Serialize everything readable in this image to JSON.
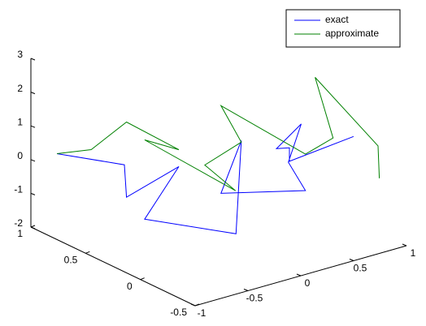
{
  "chart_data": {
    "type": "line3d",
    "xlim": [
      -1,
      1
    ],
    "ylim": [
      -0.5,
      1
    ],
    "zlim": [
      -2,
      3
    ],
    "xticks": [
      -1,
      -0.5,
      0,
      0.5,
      1
    ],
    "yticks": [
      -0.5,
      0,
      0.5,
      1
    ],
    "zticks": [
      -2,
      -1,
      0,
      1,
      2,
      3
    ],
    "legend_position": "top-right",
    "series": [
      {
        "name": "exact",
        "color": "#0000ff",
        "x": [
          -0.96,
          -0.53,
          -0.51,
          -0.17,
          -0.39,
          0.06,
          0.11,
          -0.03,
          0.51,
          0.4,
          0.47,
          0.34,
          0.41,
          0.41,
          0.81
        ],
        "y": [
          0.8,
          0.6,
          0.6,
          0.45,
          0.55,
          0.15,
          0.15,
          0.2,
          -0.05,
          0.0,
          -0.05,
          0.05,
          0.0,
          0.0,
          -0.2
        ],
        "z": [
          0.45,
          0.05,
          -0.93,
          -0.09,
          -1.61,
          -1.82,
          0.9,
          -0.62,
          -0.63,
          0.23,
          1.38,
          0.61,
          0.65,
          0.25,
          0.94
        ]
      },
      {
        "name": "approximate",
        "color": "#008000",
        "x": [
          -0.96,
          -0.74,
          -0.51,
          -0.17,
          -0.39,
          0.16,
          -0.08,
          0.11,
          -0.03,
          0.51,
          0.72,
          0.55,
          0.99,
          0.95
        ],
        "y": [
          0.8,
          0.7,
          0.6,
          0.45,
          0.55,
          0.25,
          0.3,
          0.15,
          0.2,
          -0.05,
          -0.1,
          -0.1,
          -0.25,
          -0.3
        ],
        "z": [
          0.45,
          0.53,
          1.3,
          0.41,
          0.74,
          -0.79,
          0.11,
          0.85,
          1.98,
          0.45,
          0.82,
          2.77,
          0.58,
          -0.27
        ]
      }
    ]
  }
}
